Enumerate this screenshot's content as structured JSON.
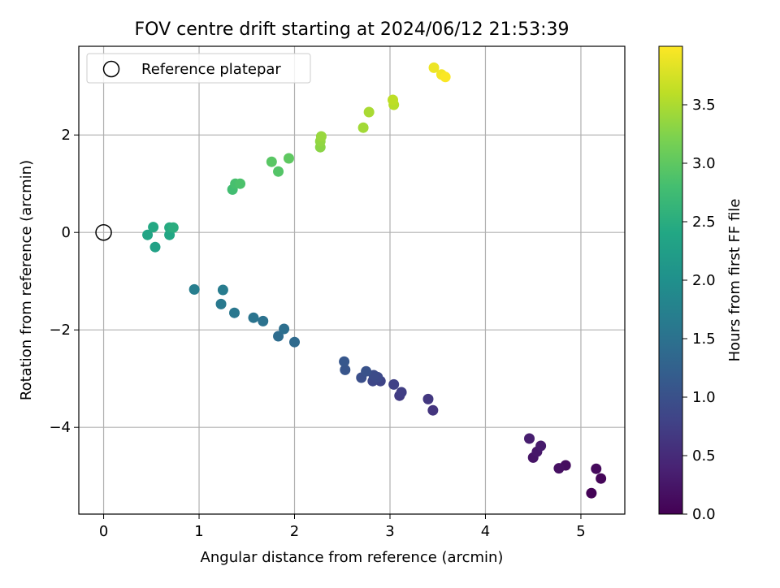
{
  "chart_data": {
    "type": "scatter",
    "title": "FOV centre drift starting at 2024/06/12 21:53:39",
    "xlabel": "Angular distance from reference (arcmin)",
    "ylabel": "Rotation from reference (arcmin)",
    "xlim": [
      -0.26,
      5.46
    ],
    "ylim": [
      -5.78,
      3.82
    ],
    "xticks": [
      0,
      1,
      2,
      3,
      4,
      5
    ],
    "yticks": [
      -4,
      -2,
      0,
      2
    ],
    "xtick_labels": [
      "0",
      "1",
      "2",
      "3",
      "4",
      "5"
    ],
    "ytick_labels": [
      "−4",
      "−2",
      "0",
      "2"
    ],
    "grid": true,
    "legend": {
      "location": "upper-left",
      "label": "Reference platepar"
    },
    "reference": {
      "x": 0,
      "y": 0
    },
    "colorbar": {
      "label": "Hours from first FF file",
      "min": 0.0,
      "max": 4.0,
      "colormap": "viridis",
      "ticks": [
        0.0,
        0.5,
        1.0,
        1.5,
        2.0,
        2.5,
        3.0,
        3.5
      ],
      "tick_labels": [
        "0.0",
        "0.5",
        "1.0",
        "1.5",
        "2.0",
        "2.5",
        "3.0",
        "3.5"
      ]
    },
    "points": [
      {
        "x": 5.11,
        "y": -5.35,
        "h": 0.02
      },
      {
        "x": 5.21,
        "y": -5.05,
        "h": 0.06
      },
      {
        "x": 5.16,
        "y": -4.85,
        "h": 0.1
      },
      {
        "x": 4.84,
        "y": -4.78,
        "h": 0.14
      },
      {
        "x": 4.77,
        "y": -4.84,
        "h": 0.18
      },
      {
        "x": 4.5,
        "y": -4.62,
        "h": 0.22
      },
      {
        "x": 4.54,
        "y": -4.5,
        "h": 0.26
      },
      {
        "x": 4.58,
        "y": -4.38,
        "h": 0.3
      },
      {
        "x": 4.46,
        "y": -4.23,
        "h": 0.34
      },
      {
        "x": 3.45,
        "y": -3.65,
        "h": 0.62
      },
      {
        "x": 3.4,
        "y": -3.42,
        "h": 0.66
      },
      {
        "x": 3.1,
        "y": -3.35,
        "h": 0.7
      },
      {
        "x": 3.12,
        "y": -3.28,
        "h": 0.74
      },
      {
        "x": 3.04,
        "y": -3.12,
        "h": 0.78
      },
      {
        "x": 2.9,
        "y": -3.05,
        "h": 0.82
      },
      {
        "x": 2.82,
        "y": -3.05,
        "h": 0.86
      },
      {
        "x": 2.87,
        "y": -2.97,
        "h": 0.9
      },
      {
        "x": 2.83,
        "y": -2.93,
        "h": 0.94
      },
      {
        "x": 2.7,
        "y": -2.98,
        "h": 0.98
      },
      {
        "x": 2.75,
        "y": -2.85,
        "h": 1.02
      },
      {
        "x": 2.53,
        "y": -2.82,
        "h": 1.06
      },
      {
        "x": 2.52,
        "y": -2.65,
        "h": 1.1
      },
      {
        "x": 2.0,
        "y": -2.25,
        "h": 1.38
      },
      {
        "x": 1.83,
        "y": -2.13,
        "h": 1.42
      },
      {
        "x": 1.89,
        "y": -1.98,
        "h": 1.46
      },
      {
        "x": 1.67,
        "y": -1.82,
        "h": 1.5
      },
      {
        "x": 1.57,
        "y": -1.75,
        "h": 1.54
      },
      {
        "x": 1.37,
        "y": -1.65,
        "h": 1.58
      },
      {
        "x": 1.23,
        "y": -1.47,
        "h": 1.62
      },
      {
        "x": 1.25,
        "y": -1.18,
        "h": 1.66
      },
      {
        "x": 0.95,
        "y": -1.17,
        "h": 1.7
      },
      {
        "x": 0.54,
        "y": -0.3,
        "h": 2.3
      },
      {
        "x": 0.46,
        "y": -0.05,
        "h": 2.34
      },
      {
        "x": 0.69,
        "y": -0.05,
        "h": 2.38
      },
      {
        "x": 0.52,
        "y": 0.11,
        "h": 2.42
      },
      {
        "x": 0.69,
        "y": 0.1,
        "h": 2.46
      },
      {
        "x": 0.73,
        "y": 0.1,
        "h": 2.5
      },
      {
        "x": 1.35,
        "y": 0.88,
        "h": 2.78
      },
      {
        "x": 1.38,
        "y": 1.0,
        "h": 2.82
      },
      {
        "x": 1.43,
        "y": 1.0,
        "h": 2.86
      },
      {
        "x": 1.83,
        "y": 1.25,
        "h": 2.92
      },
      {
        "x": 1.76,
        "y": 1.45,
        "h": 2.96
      },
      {
        "x": 1.94,
        "y": 1.52,
        "h": 3.0
      },
      {
        "x": 2.27,
        "y": 1.75,
        "h": 3.3
      },
      {
        "x": 2.27,
        "y": 1.87,
        "h": 3.34
      },
      {
        "x": 2.28,
        "y": 1.97,
        "h": 3.38
      },
      {
        "x": 2.72,
        "y": 2.15,
        "h": 3.44
      },
      {
        "x": 2.78,
        "y": 2.47,
        "h": 3.48
      },
      {
        "x": 3.04,
        "y": 2.62,
        "h": 3.56
      },
      {
        "x": 3.03,
        "y": 2.72,
        "h": 3.6
      },
      {
        "x": 3.46,
        "y": 3.38,
        "h": 3.9
      },
      {
        "x": 3.54,
        "y": 3.24,
        "h": 3.94
      },
      {
        "x": 3.58,
        "y": 3.19,
        "h": 3.98
      }
    ]
  }
}
